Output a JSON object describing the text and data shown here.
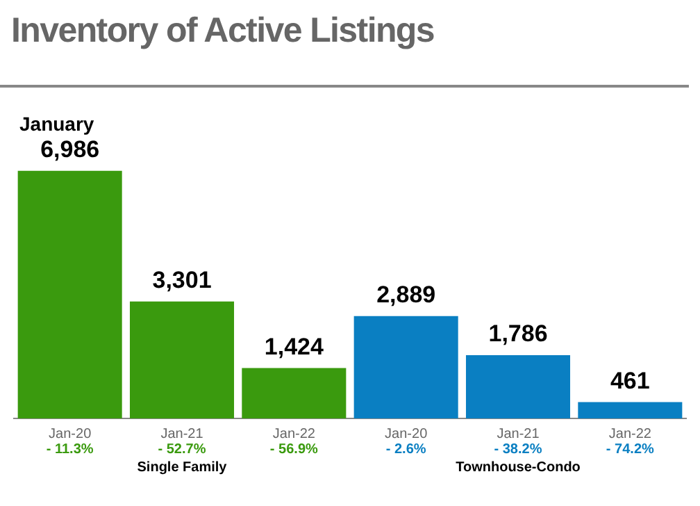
{
  "chart_data": {
    "type": "bar",
    "title": "Inventory of Active Listings",
    "subtitle": "January",
    "categories": [
      "Jan-20",
      "Jan-21",
      "Jan-22",
      "Jan-20",
      "Jan-21",
      "Jan-22"
    ],
    "series": [
      {
        "name": "Single Family",
        "color": "#3a9a0e",
        "values": [
          6986,
          3301,
          1424,
          null,
          null,
          null
        ],
        "value_labels": [
          "6,986",
          "3,301",
          "1,424",
          null,
          null,
          null
        ]
      },
      {
        "name": "Townhouse-Condo",
        "color": "#0a7fc2",
        "values": [
          null,
          null,
          null,
          2889,
          1786,
          461
        ],
        "value_labels": [
          null,
          null,
          null,
          "2,889",
          "1,786",
          "461"
        ]
      }
    ],
    "annotations": [
      "- 11.3%",
      "- 52.7%",
      "- 56.9%",
      "- 2.6%",
      "- 38.2%",
      "- 74.2%"
    ],
    "legend": false
  }
}
